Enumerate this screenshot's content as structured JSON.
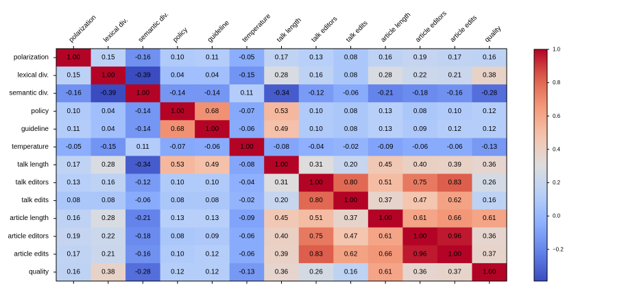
{
  "chart_data": {
    "type": "heatmap",
    "title": "",
    "labels": [
      "polarization",
      "lexical div.",
      "semantic div.",
      "policy",
      "guideline",
      "temperature",
      "talk length",
      "talk editors",
      "talk edits",
      "article length",
      "article editors",
      "article edits",
      "quality"
    ],
    "values": [
      [
        1.0,
        0.15,
        -0.16,
        0.1,
        0.11,
        -0.05,
        0.17,
        0.13,
        0.08,
        0.16,
        0.19,
        0.17,
        0.16
      ],
      [
        0.15,
        1.0,
        -0.39,
        0.04,
        0.04,
        -0.15,
        0.28,
        0.16,
        0.08,
        0.28,
        0.22,
        0.21,
        0.38
      ],
      [
        -0.16,
        -0.39,
        1.0,
        -0.14,
        -0.14,
        0.11,
        -0.34,
        -0.12,
        -0.06,
        -0.21,
        -0.18,
        -0.16,
        -0.28
      ],
      [
        0.1,
        0.04,
        -0.14,
        1.0,
        0.68,
        -0.07,
        0.53,
        0.1,
        0.08,
        0.13,
        0.08,
        0.1,
        0.12
      ],
      [
        0.11,
        0.04,
        -0.14,
        0.68,
        1.0,
        -0.06,
        0.49,
        0.1,
        0.08,
        0.13,
        0.09,
        0.12,
        0.12
      ],
      [
        -0.05,
        -0.15,
        0.11,
        -0.07,
        -0.06,
        1.0,
        -0.08,
        -0.04,
        -0.02,
        -0.09,
        -0.06,
        -0.06,
        -0.13
      ],
      [
        0.17,
        0.28,
        -0.34,
        0.53,
        0.49,
        -0.08,
        1.0,
        0.31,
        0.2,
        0.45,
        0.4,
        0.39,
        0.36
      ],
      [
        0.13,
        0.16,
        -0.12,
        0.1,
        0.1,
        -0.04,
        0.31,
        1.0,
        0.8,
        0.51,
        0.75,
        0.83,
        0.26
      ],
      [
        0.08,
        0.08,
        -0.06,
        0.08,
        0.08,
        -0.02,
        0.2,
        0.8,
        1.0,
        0.37,
        0.47,
        0.62,
        0.16
      ],
      [
        0.16,
        0.28,
        -0.21,
        0.13,
        0.13,
        -0.09,
        0.45,
        0.51,
        0.37,
        1.0,
        0.61,
        0.66,
        0.61
      ],
      [
        0.19,
        0.22,
        -0.18,
        0.08,
        0.09,
        -0.06,
        0.4,
        0.75,
        0.47,
        0.61,
        1.0,
        0.96,
        0.36
      ],
      [
        0.17,
        0.21,
        -0.16,
        0.1,
        0.12,
        -0.06,
        0.39,
        0.83,
        0.62,
        0.66,
        0.96,
        1.0,
        0.37
      ],
      [
        0.16,
        0.38,
        -0.28,
        0.12,
        0.12,
        -0.13,
        0.36,
        0.26,
        0.16,
        0.61,
        0.36,
        0.37,
        1.0
      ]
    ],
    "value_format": "2 decimals",
    "colormap": "coolwarm",
    "vmin": -0.39,
    "vmax": 1.0,
    "colorbar": {
      "ticks": [
        1.0,
        0.8,
        0.6,
        0.4,
        0.2,
        0.0,
        -0.2
      ],
      "tick_labels": [
        "1.0",
        "0.8",
        "0.6",
        "0.4",
        "0.2",
        "0.0",
        "−0.2"
      ],
      "placement": "right"
    },
    "x_tick_position": "top",
    "x_tick_rotation": "45deg"
  }
}
